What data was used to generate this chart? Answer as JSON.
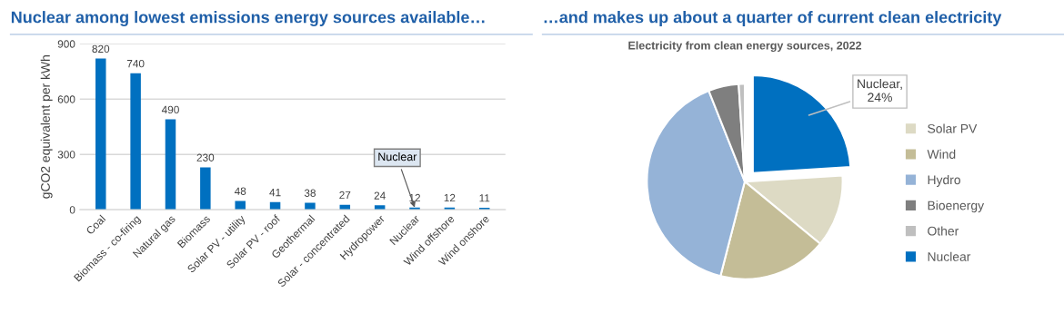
{
  "chart_data": [
    {
      "type": "bar",
      "title": "Nuclear among lowest emissions energy sources available…",
      "ylabel": "gCO2 equivalent per kWh",
      "categories": [
        "Coal",
        "Biomass - co-firing",
        "Natural gas",
        "Biomass",
        "Solar PV - utility",
        "Solar PV - roof",
        "Geothermal",
        "Solar - concentrated",
        "Hydropower",
        "Nuclear",
        "Wind offshore",
        "Wind onshore"
      ],
      "values": [
        820,
        740,
        490,
        230,
        48,
        41,
        38,
        27,
        24,
        12,
        12,
        11
      ],
      "color": "#0070c0",
      "ylim": [
        0,
        900
      ],
      "yticks": [
        0,
        300,
        600,
        900
      ],
      "grid": "y",
      "data_labels": true,
      "annotations": [
        {
          "text": "Nuclear",
          "x": "Nuclear",
          "y": 12
        }
      ]
    },
    {
      "type": "pie",
      "title": "…and makes up about a quarter of current clean electricity",
      "subtitle": "Electricity from clean energy sources, 2022",
      "categories": [
        "Solar PV",
        "Wind",
        "Hydro",
        "Bioenergy",
        "Other",
        "Nuclear"
      ],
      "values": [
        12,
        18,
        40,
        5,
        1,
        24
      ],
      "colors": [
        "#dddac4",
        "#c4bd97",
        "#95b3d7",
        "#7f7f7f",
        "#bfbfbf",
        "#0070c0"
      ],
      "value_labels": [
        null,
        null,
        null,
        null,
        null,
        "Nuclear,\n24%"
      ],
      "legend": "right"
    }
  ]
}
